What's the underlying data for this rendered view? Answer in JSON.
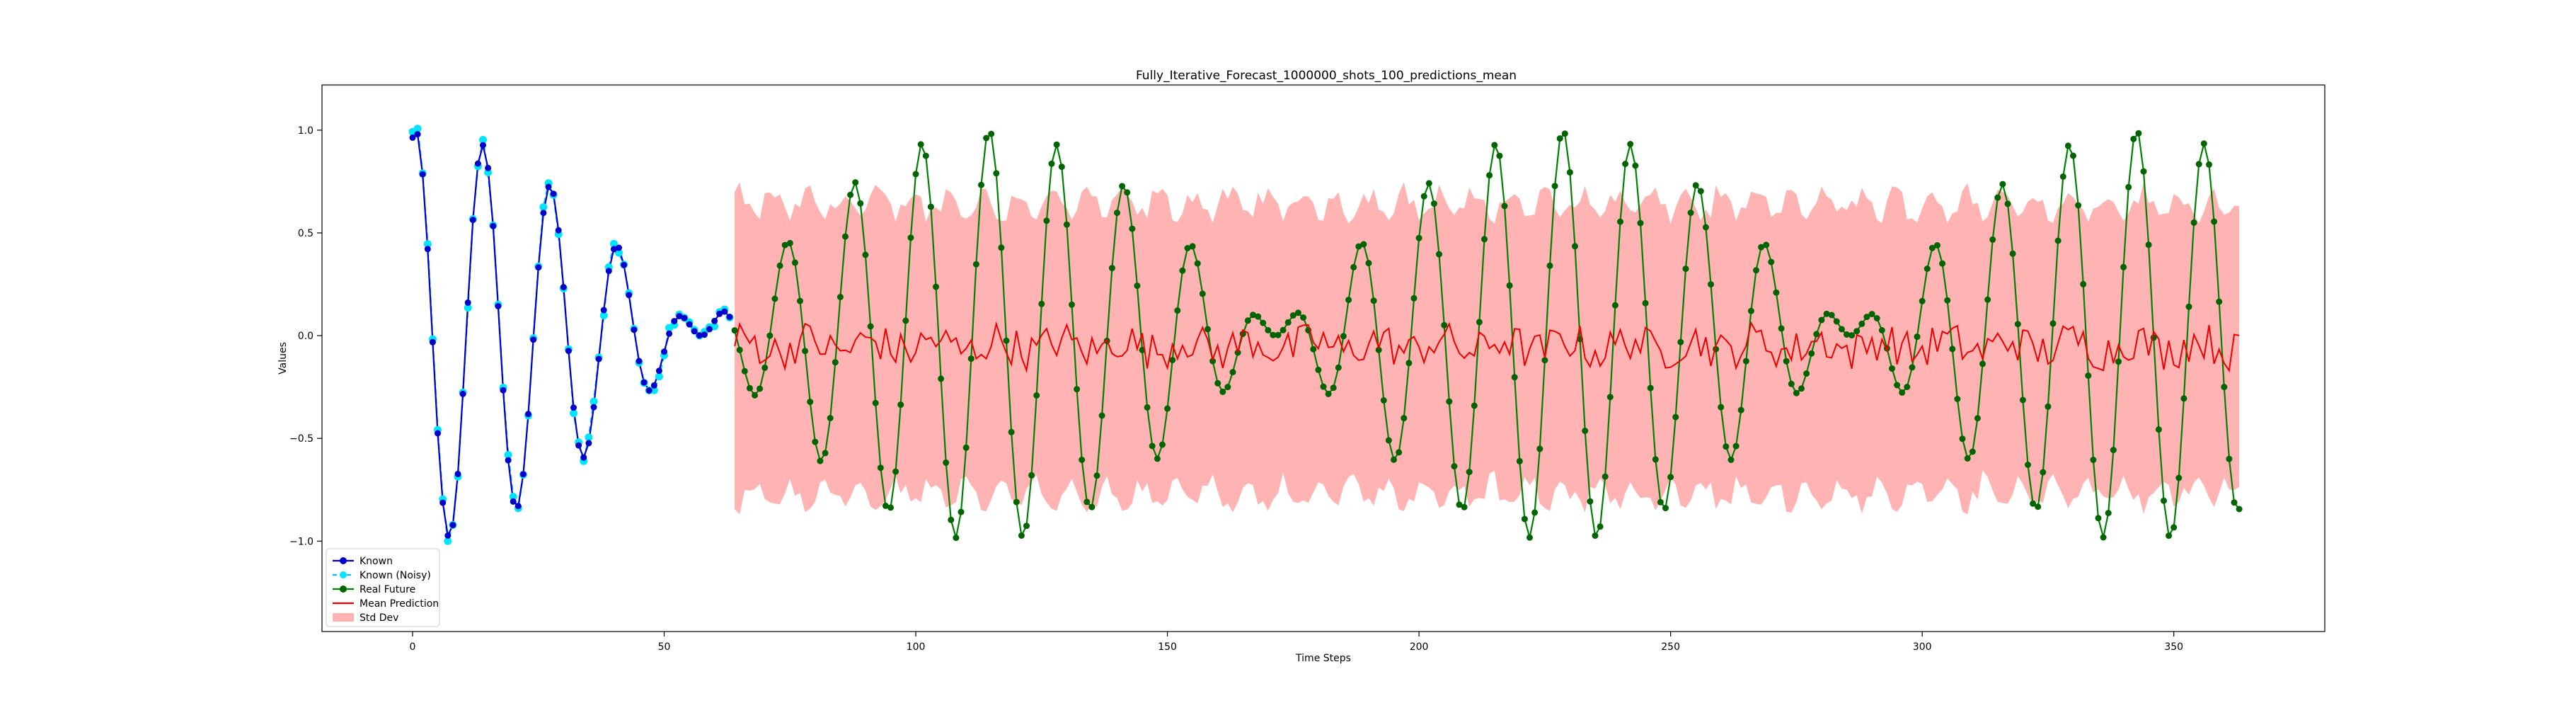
{
  "chart_data": {
    "type": "line",
    "title": "Fully_Iterative_Forecast_1000000_shots_100_predictions_mean",
    "xlabel": "Time Steps",
    "ylabel": "Values",
    "xlim": [
      -18,
      380
    ],
    "ylim": [
      -1.44,
      1.22
    ],
    "x_ticks": [
      0,
      50,
      100,
      150,
      200,
      250,
      300,
      350
    ],
    "y_ticks": [
      1.0,
      0.5,
      0.0,
      -0.5,
      -1.0
    ],
    "grid": false,
    "legend_position": "bottom-left",
    "known_range": [
      0,
      63
    ],
    "future_range": [
      64,
      363
    ],
    "signal_model": "0.5*sin(2*pi*t/14.25 + 1.30) + 0.5*sin(2*pi*t/12.67 + 1.30)",
    "series": [
      {
        "name": "Known",
        "kind": "line+marker",
        "color": "#0000cc",
        "marker_color": "#0000cc",
        "x_range": [
          0,
          63
        ]
      },
      {
        "name": "Known (Noisy)",
        "kind": "dashed+marker",
        "color": "#00bfff",
        "marker_color": "#00e5ff",
        "x_range": [
          0,
          63
        ]
      },
      {
        "name": "Real Future",
        "kind": "line+marker",
        "color": "#008000",
        "marker_color": "#006400",
        "x_range": [
          64,
          363
        ]
      },
      {
        "name": "Mean Prediction",
        "kind": "line",
        "color": "#ee0000",
        "x_range": [
          64,
          363
        ],
        "approx_mean": -0.05,
        "approx_amplitude": 0.12
      },
      {
        "name": "Std Dev",
        "kind": "band",
        "color": "#ff9999",
        "x_range": [
          64,
          363
        ],
        "approx_halfwidth": 0.7
      }
    ]
  }
}
